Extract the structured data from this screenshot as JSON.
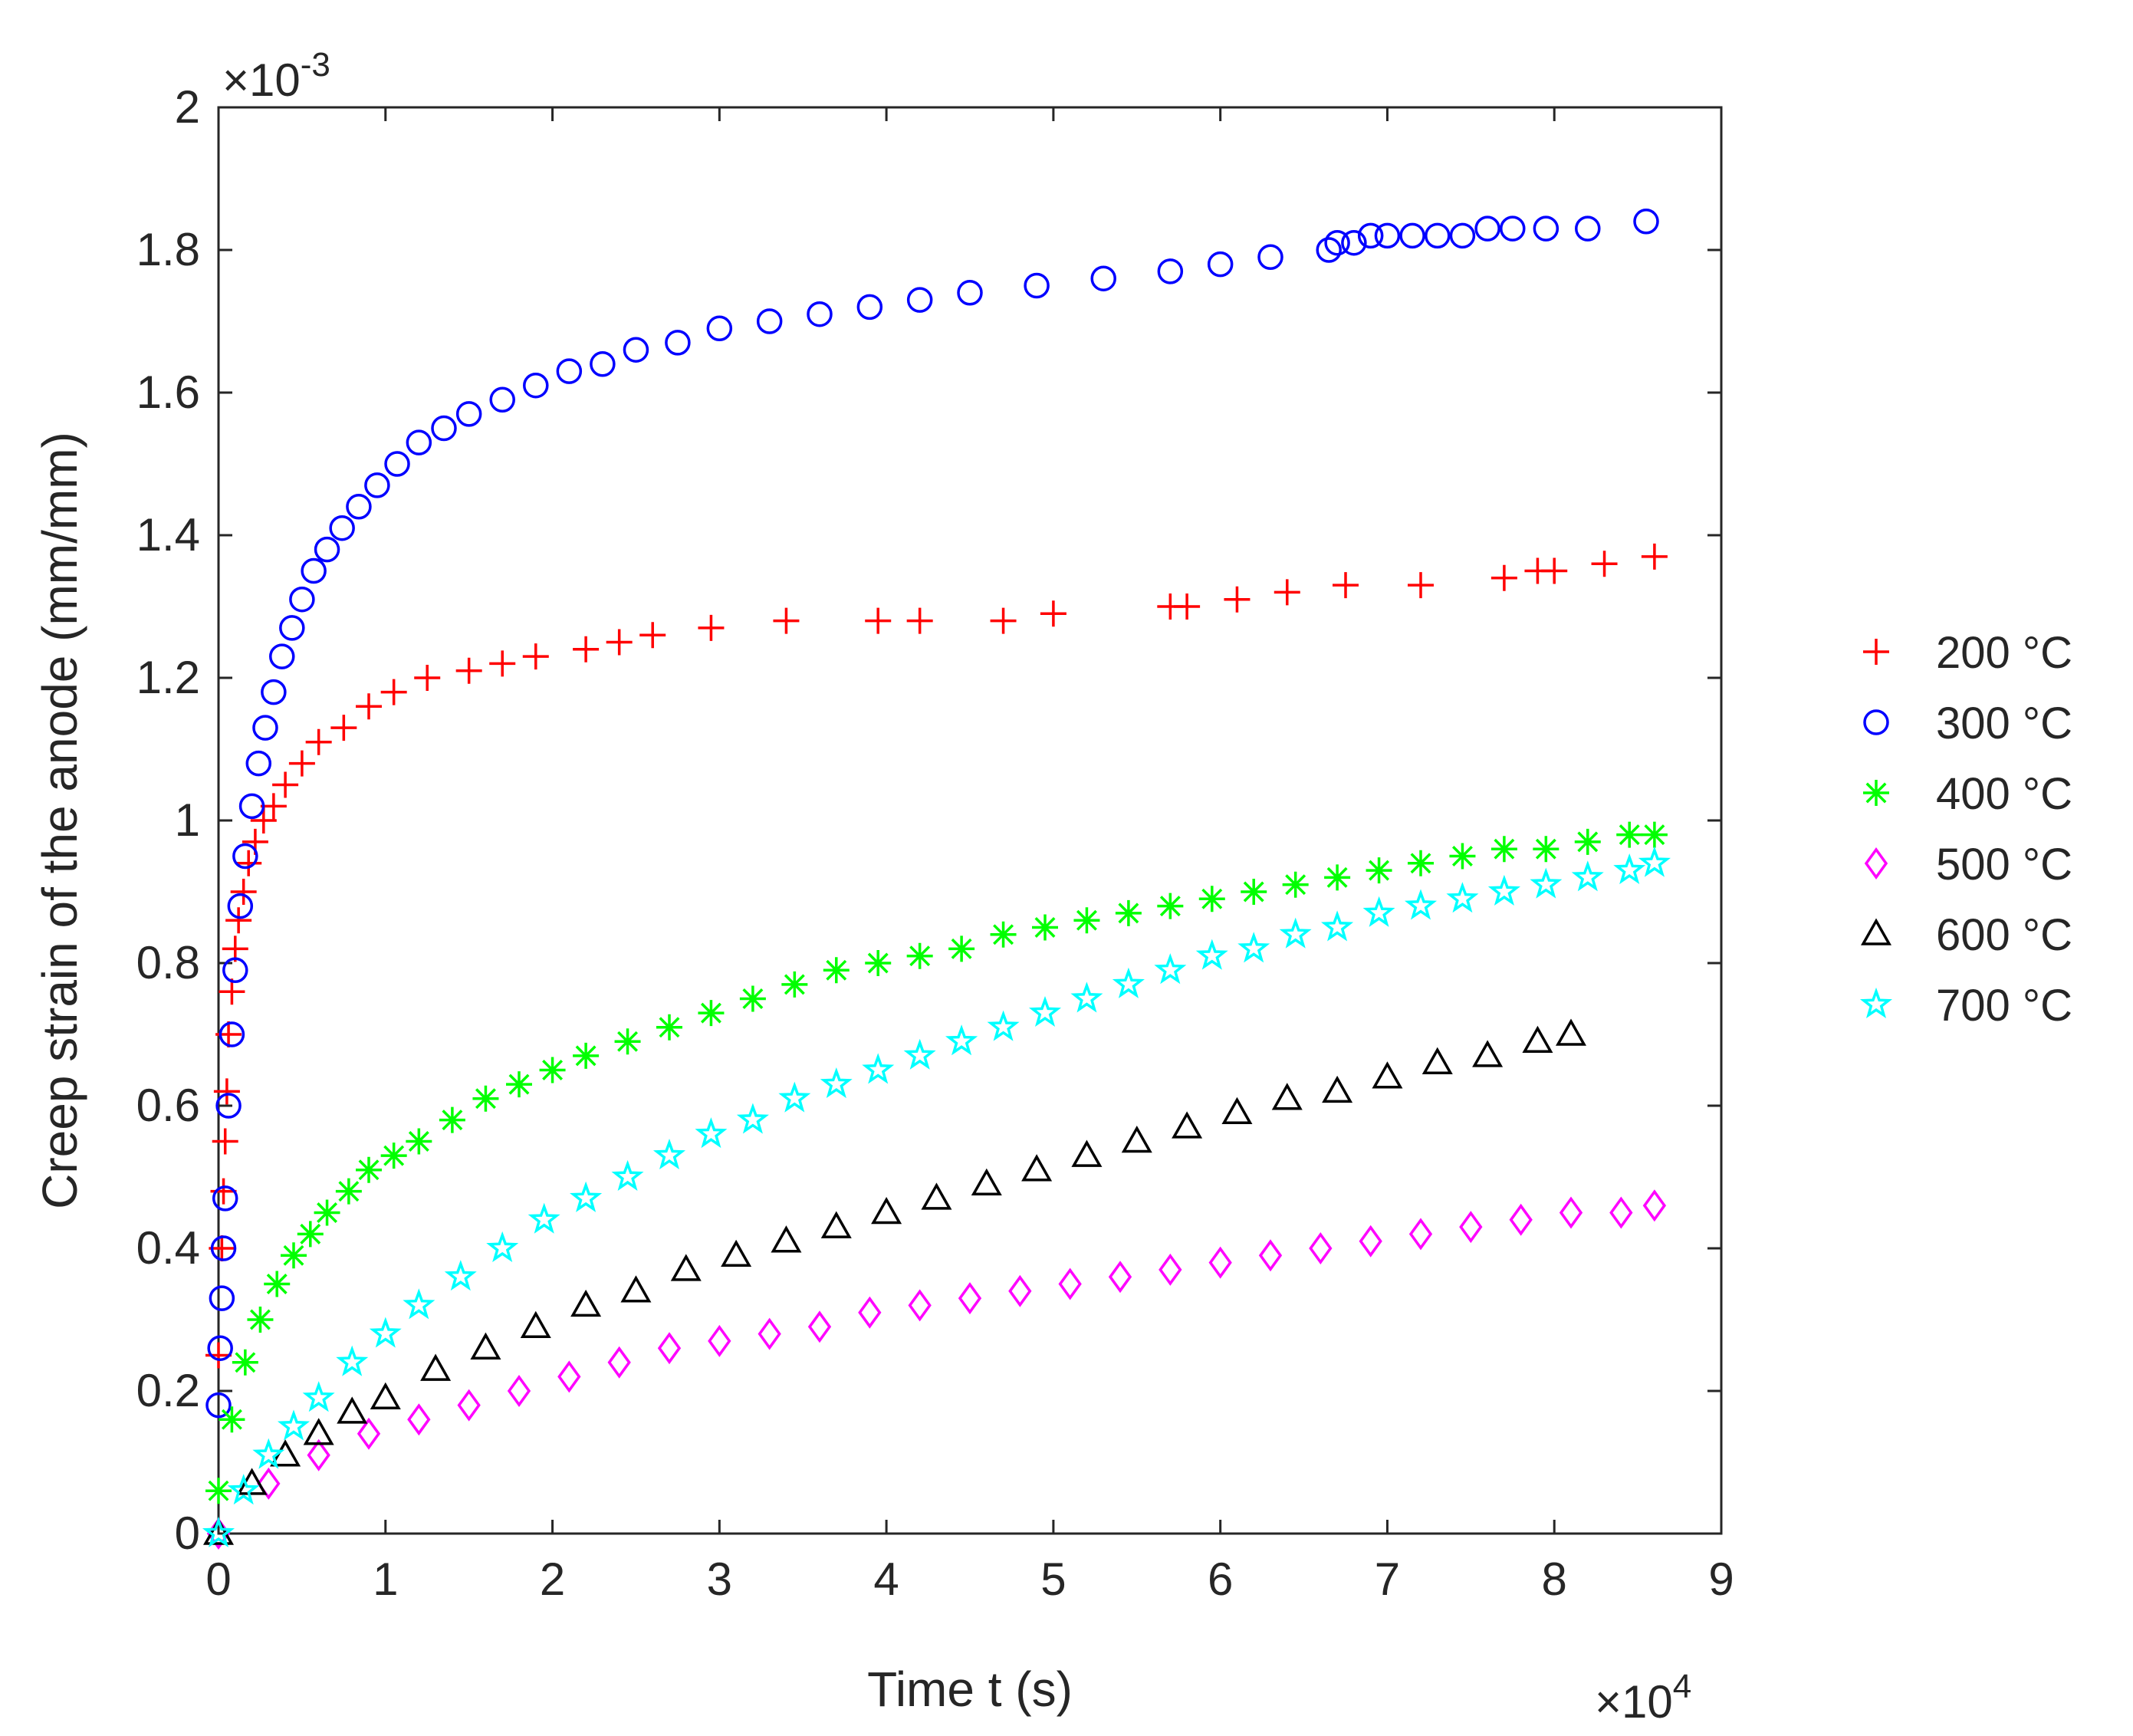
{
  "chart_data": {
    "type": "scatter",
    "title": "",
    "xlabel": "Time t (s)",
    "ylabel": "Creep strain of the anode (mm/mm)",
    "x_multiplier_label": "×10",
    "x_multiplier_exp": "4",
    "y_multiplier_label": "×10",
    "y_multiplier_exp": "-3",
    "xlim": [
      0,
      9
    ],
    "ylim": [
      0,
      2
    ],
    "xticks": [
      "0",
      "1",
      "2",
      "3",
      "4",
      "5",
      "6",
      "7",
      "8",
      "9"
    ],
    "yticks": [
      "0",
      "0.2",
      "0.4",
      "0.6",
      "0.8",
      "1",
      "1.2",
      "1.4",
      "1.6",
      "1.8",
      "2"
    ],
    "legend_position": "right",
    "series": [
      {
        "name": "200 °C",
        "marker": "plus",
        "color": "#ff0000",
        "x": [
          0,
          0.02,
          0.03,
          0.04,
          0.05,
          0.06,
          0.08,
          0.1,
          0.12,
          0.15,
          0.18,
          0.22,
          0.27,
          0.33,
          0.4,
          0.5,
          0.6,
          0.75,
          0.9,
          1.05,
          1.25,
          1.5,
          1.7,
          1.9,
          2.2,
          2.4,
          2.6,
          2.95,
          3.4,
          3.95,
          4.2,
          4.7,
          5.0,
          5.7,
          5.8,
          6.1,
          6.4,
          6.75,
          7.2,
          7.7,
          7.9,
          8.0,
          8.3,
          8.6
        ],
        "y": [
          0.25,
          0.4,
          0.48,
          0.55,
          0.62,
          0.7,
          0.76,
          0.82,
          0.86,
          0.9,
          0.94,
          0.97,
          1.0,
          1.02,
          1.05,
          1.08,
          1.11,
          1.13,
          1.16,
          1.18,
          1.2,
          1.21,
          1.22,
          1.23,
          1.24,
          1.25,
          1.26,
          1.27,
          1.28,
          1.28,
          1.28,
          1.28,
          1.29,
          1.3,
          1.3,
          1.31,
          1.32,
          1.33,
          1.33,
          1.34,
          1.35,
          1.35,
          1.36,
          1.37
        ]
      },
      {
        "name": "300 °C",
        "marker": "circle",
        "color": "#0000ff",
        "x": [
          0,
          0.01,
          0.02,
          0.03,
          0.04,
          0.06,
          0.08,
          0.1,
          0.13,
          0.16,
          0.2,
          0.24,
          0.28,
          0.33,
          0.38,
          0.44,
          0.5,
          0.57,
          0.65,
          0.74,
          0.84,
          0.95,
          1.07,
          1.2,
          1.35,
          1.5,
          1.7,
          1.9,
          2.1,
          2.3,
          2.5,
          2.75,
          3.0,
          3.3,
          3.6,
          3.9,
          4.2,
          4.5,
          4.9,
          5.3,
          5.7,
          6.0,
          6.3,
          6.65,
          6.7,
          6.8,
          6.9,
          7.0,
          7.15,
          7.3,
          7.45,
          7.6,
          7.75,
          7.95,
          8.2,
          8.55
        ],
        "y": [
          0.18,
          0.26,
          0.33,
          0.4,
          0.47,
          0.6,
          0.7,
          0.79,
          0.88,
          0.95,
          1.02,
          1.08,
          1.13,
          1.18,
          1.23,
          1.27,
          1.31,
          1.35,
          1.38,
          1.41,
          1.44,
          1.47,
          1.5,
          1.53,
          1.55,
          1.57,
          1.59,
          1.61,
          1.63,
          1.64,
          1.66,
          1.67,
          1.69,
          1.7,
          1.71,
          1.72,
          1.73,
          1.74,
          1.75,
          1.76,
          1.77,
          1.78,
          1.79,
          1.8,
          1.81,
          1.81,
          1.82,
          1.82,
          1.82,
          1.82,
          1.82,
          1.83,
          1.83,
          1.83,
          1.83,
          1.84
        ]
      },
      {
        "name": "400 °C",
        "marker": "asterisk",
        "color": "#00ff00",
        "x": [
          0,
          0.08,
          0.16,
          0.25,
          0.35,
          0.45,
          0.55,
          0.65,
          0.78,
          0.9,
          1.05,
          1.2,
          1.4,
          1.6,
          1.8,
          2.0,
          2.2,
          2.45,
          2.7,
          2.95,
          3.2,
          3.45,
          3.7,
          3.95,
          4.2,
          4.45,
          4.7,
          4.95,
          5.2,
          5.45,
          5.7,
          5.95,
          6.2,
          6.45,
          6.7,
          6.95,
          7.2,
          7.45,
          7.7,
          7.95,
          8.2,
          8.45,
          8.6
        ],
        "y": [
          0.06,
          0.16,
          0.24,
          0.3,
          0.35,
          0.39,
          0.42,
          0.45,
          0.48,
          0.51,
          0.53,
          0.55,
          0.58,
          0.61,
          0.63,
          0.65,
          0.67,
          0.69,
          0.71,
          0.73,
          0.75,
          0.77,
          0.79,
          0.8,
          0.81,
          0.82,
          0.84,
          0.85,
          0.86,
          0.87,
          0.88,
          0.89,
          0.9,
          0.91,
          0.92,
          0.93,
          0.94,
          0.95,
          0.96,
          0.96,
          0.97,
          0.98,
          0.98
        ]
      },
      {
        "name": "500 °C",
        "marker": "diamond",
        "color": "#ff00ff",
        "x": [
          0,
          0.3,
          0.6,
          0.9,
          1.2,
          1.5,
          1.8,
          2.1,
          2.4,
          2.7,
          3.0,
          3.3,
          3.6,
          3.9,
          4.2,
          4.5,
          4.8,
          5.1,
          5.4,
          5.7,
          6.0,
          6.3,
          6.6,
          6.9,
          7.2,
          7.5,
          7.8,
          8.1,
          8.4,
          8.6
        ],
        "y": [
          0,
          0.07,
          0.11,
          0.14,
          0.16,
          0.18,
          0.2,
          0.22,
          0.24,
          0.26,
          0.27,
          0.28,
          0.29,
          0.31,
          0.32,
          0.33,
          0.34,
          0.35,
          0.36,
          0.37,
          0.38,
          0.39,
          0.4,
          0.41,
          0.42,
          0.43,
          0.44,
          0.45,
          0.45,
          0.46
        ]
      },
      {
        "name": "600 °C",
        "marker": "triangle",
        "color": "#000000",
        "x": [
          0,
          0.2,
          0.4,
          0.6,
          0.8,
          1.0,
          1.3,
          1.6,
          1.9,
          2.2,
          2.5,
          2.8,
          3.1,
          3.4,
          3.7,
          4.0,
          4.3,
          4.6,
          4.9,
          5.2,
          5.5,
          5.8,
          6.1,
          6.4,
          6.7,
          7.0,
          7.3,
          7.6,
          7.9,
          8.1
        ],
        "y": [
          0,
          0.07,
          0.11,
          0.14,
          0.17,
          0.19,
          0.23,
          0.26,
          0.29,
          0.32,
          0.34,
          0.37,
          0.39,
          0.41,
          0.43,
          0.45,
          0.47,
          0.49,
          0.51,
          0.53,
          0.55,
          0.57,
          0.59,
          0.61,
          0.62,
          0.64,
          0.66,
          0.67,
          0.69,
          0.7
        ]
      },
      {
        "name": "700 °C",
        "marker": "pentagram",
        "color": "#00ffff",
        "x": [
          0,
          0.15,
          0.3,
          0.45,
          0.6,
          0.8,
          1.0,
          1.2,
          1.45,
          1.7,
          1.95,
          2.2,
          2.45,
          2.7,
          2.95,
          3.2,
          3.45,
          3.7,
          3.95,
          4.2,
          4.45,
          4.7,
          4.95,
          5.2,
          5.45,
          5.7,
          5.95,
          6.2,
          6.45,
          6.7,
          6.95,
          7.2,
          7.45,
          7.7,
          7.95,
          8.2,
          8.45,
          8.6
        ],
        "y": [
          0,
          0.06,
          0.11,
          0.15,
          0.19,
          0.24,
          0.28,
          0.32,
          0.36,
          0.4,
          0.44,
          0.47,
          0.5,
          0.53,
          0.56,
          0.58,
          0.61,
          0.63,
          0.65,
          0.67,
          0.69,
          0.71,
          0.73,
          0.75,
          0.77,
          0.79,
          0.81,
          0.82,
          0.84,
          0.85,
          0.87,
          0.88,
          0.89,
          0.9,
          0.91,
          0.92,
          0.93,
          0.94
        ]
      }
    ]
  }
}
